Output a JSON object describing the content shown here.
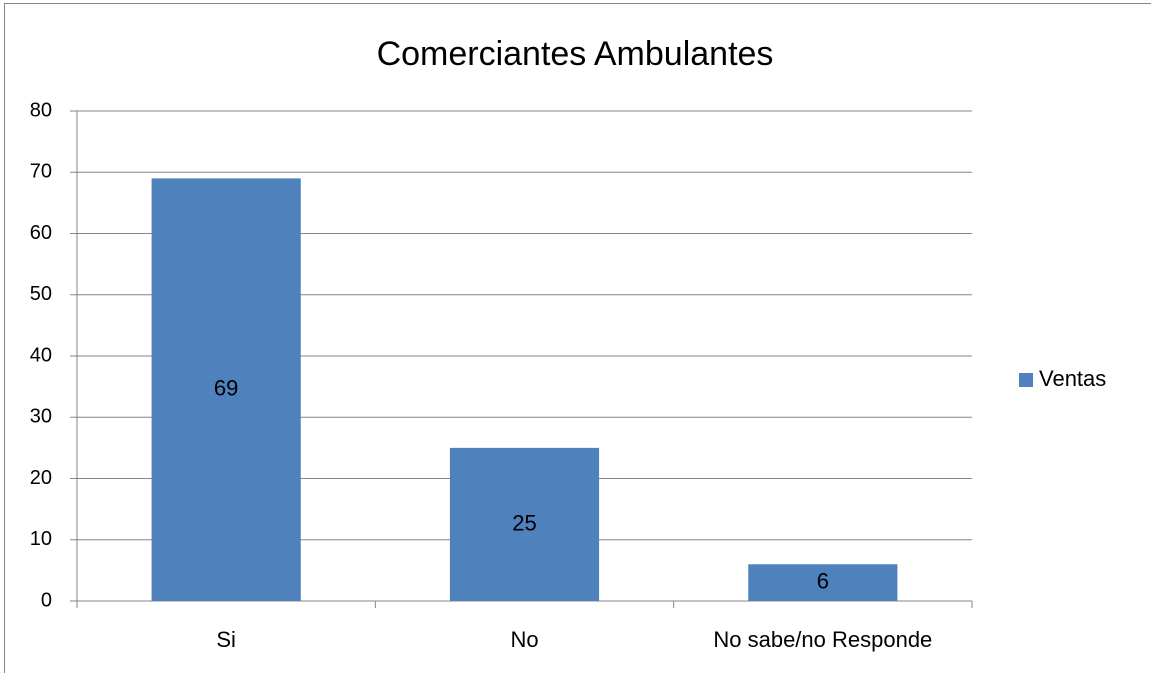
{
  "chart_data": {
    "type": "bar",
    "title": "Comerciantes Ambulantes",
    "categories": [
      "Si",
      "No",
      "No sabe/no Responde"
    ],
    "series": [
      {
        "name": "Ventas",
        "color": "#4f81bd",
        "values": [
          69,
          25,
          6
        ]
      }
    ],
    "ylim": [
      0,
      80
    ],
    "yticks": [
      0,
      10,
      20,
      30,
      40,
      50,
      60,
      70,
      80
    ],
    "grid": true,
    "legend": "right"
  }
}
